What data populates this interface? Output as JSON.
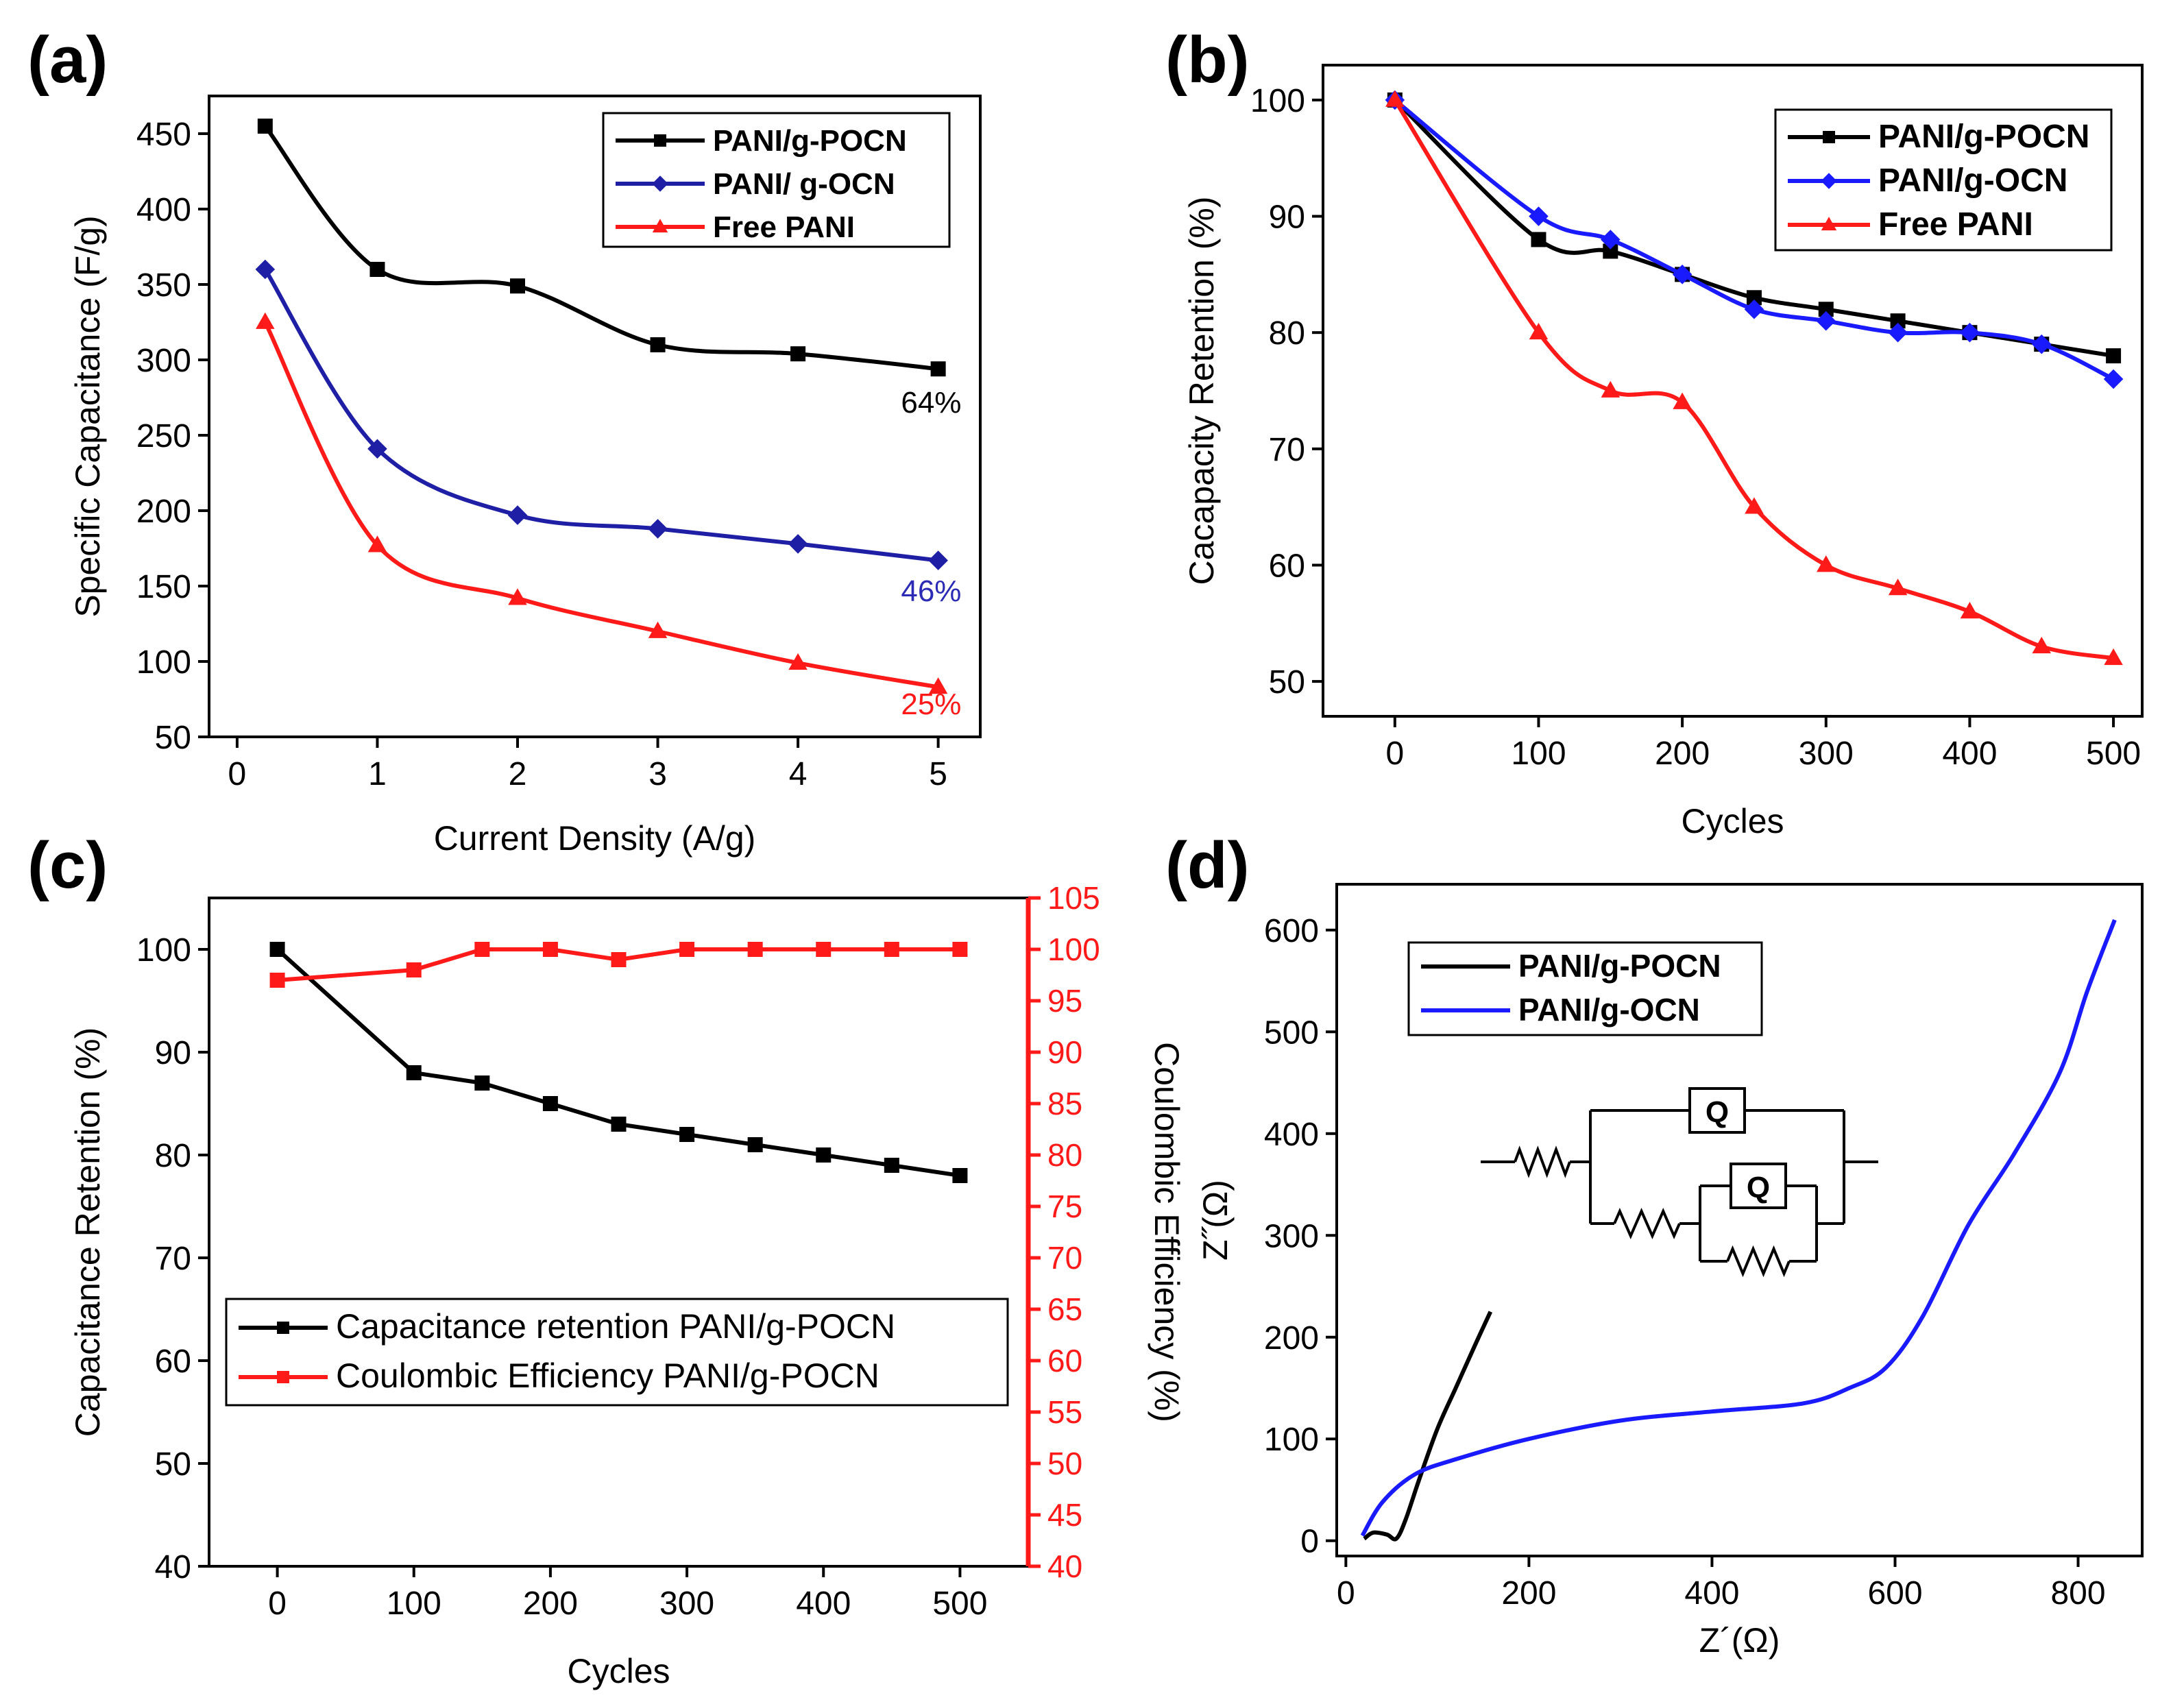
{
  "panels": {
    "a": "(a)",
    "b": "(b)",
    "c": "(c)",
    "d": "(d)"
  },
  "colors": {
    "black": "#000000",
    "navy": "#1f1fa6",
    "red": "#ff1a1a",
    "blue": "#1a1aff",
    "annotation_navy": "#2b2bb5"
  },
  "chart_data": [
    {
      "id": "a",
      "type": "line",
      "title": "",
      "xlabel": "Current Density (A/g)",
      "ylabel": "Specific Capacitance (F/g)",
      "xlim": [
        -0.2,
        5.3
      ],
      "ylim": [
        50,
        475
      ],
      "xticks": [
        0,
        1,
        2,
        3,
        4,
        5
      ],
      "yticks": [
        50,
        100,
        150,
        200,
        250,
        300,
        350,
        400,
        450
      ],
      "legend_position": "top-right",
      "series": [
        {
          "name": "PANI/g-POCN",
          "color": "#000000",
          "marker": "square",
          "x": [
            0.2,
            1,
            2,
            3,
            4,
            5
          ],
          "y": [
            455,
            360,
            349,
            310,
            304,
            294
          ]
        },
        {
          "name": "PANI/ g-OCN",
          "color": "#1f1fa6",
          "marker": "diamond",
          "x": [
            0.2,
            1,
            2,
            3,
            4,
            5
          ],
          "y": [
            360,
            241,
            197,
            188,
            178,
            167
          ]
        },
        {
          "name": "Free PANI",
          "color": "#ff1a1a",
          "marker": "triangle",
          "x": [
            0.2,
            1,
            2,
            3,
            4,
            5
          ],
          "y": [
            325,
            177,
            142,
            120,
            99,
            83
          ]
        }
      ],
      "annotations": [
        {
          "text": "64%",
          "color": "#000000",
          "x": 4.95,
          "y": 265
        },
        {
          "text": "46%",
          "color": "#2b2bb5",
          "x": 4.95,
          "y": 140
        },
        {
          "text": "25%",
          "color": "#ff1a1a",
          "x": 4.95,
          "y": 65
        }
      ]
    },
    {
      "id": "b",
      "type": "line",
      "title": "",
      "xlabel": "Cycles",
      "ylabel": "Cacapacity Retention (%)",
      "xlim": [
        -50,
        520
      ],
      "ylim": [
        47,
        103
      ],
      "xticks": [
        0,
        100,
        200,
        300,
        400,
        500
      ],
      "yticks": [
        50,
        60,
        70,
        80,
        90,
        100
      ],
      "legend_position": "top-right",
      "series": [
        {
          "name": "PANI/g-POCN",
          "color": "#000000",
          "marker": "square",
          "x": [
            0,
            100,
            150,
            200,
            250,
            300,
            350,
            400,
            450,
            500
          ],
          "y": [
            100,
            88,
            87,
            85,
            83,
            82,
            81,
            80,
            79,
            78
          ]
        },
        {
          "name": "PANI/g-OCN",
          "color": "#1a1aff",
          "marker": "diamond",
          "x": [
            0,
            100,
            150,
            200,
            250,
            300,
            350,
            400,
            450,
            500
          ],
          "y": [
            100,
            90,
            88,
            85,
            82,
            81,
            80,
            80,
            79,
            76
          ]
        },
        {
          "name": "Free PANI",
          "color": "#ff1a1a",
          "marker": "triangle",
          "x": [
            0,
            100,
            150,
            200,
            250,
            300,
            350,
            400,
            450,
            500
          ],
          "y": [
            100,
            80,
            75,
            74,
            65,
            60,
            58,
            56,
            53,
            52
          ]
        }
      ]
    },
    {
      "id": "c",
      "type": "line",
      "title": "",
      "xlabel": "Cycles",
      "ylabel": "Capacitance Retention (%)",
      "y2label": "Coulombic Efficiency (%)",
      "xlim": [
        -50,
        550
      ],
      "ylim": [
        40,
        105
      ],
      "y2lim": [
        40,
        105
      ],
      "xticks": [
        0,
        100,
        200,
        300,
        400,
        500
      ],
      "yticks": [
        40,
        50,
        60,
        70,
        80,
        90,
        100
      ],
      "y2ticks": [
        40,
        45,
        50,
        55,
        60,
        65,
        70,
        75,
        80,
        85,
        90,
        95,
        100,
        105
      ],
      "legend_position": "lower-left",
      "series": [
        {
          "name": "Capacitance retention PANI/g-POCN",
          "color": "#000000",
          "marker": "square",
          "axis": "left",
          "x": [
            0,
            100,
            150,
            200,
            250,
            300,
            350,
            400,
            450,
            500
          ],
          "y": [
            100,
            88,
            87,
            85,
            83,
            82,
            81,
            80,
            79,
            78
          ]
        },
        {
          "name": "Coulombic Efficiency PANI/g-POCN",
          "color": "#ff1a1a",
          "marker": "square",
          "axis": "right",
          "x": [
            0,
            100,
            150,
            200,
            250,
            300,
            350,
            400,
            450,
            500
          ],
          "y": [
            97,
            98,
            100,
            100,
            99,
            100,
            100,
            100,
            100,
            100
          ]
        }
      ]
    },
    {
      "id": "d",
      "type": "line",
      "title": "",
      "xlabel": "Z´(Ω)",
      "ylabel": "Z˝(Ω)",
      "xlim": [
        -10,
        870
      ],
      "ylim": [
        -15,
        645
      ],
      "xticks": [
        0,
        200,
        400,
        600,
        800
      ],
      "yticks": [
        0,
        100,
        200,
        300,
        400,
        500,
        600
      ],
      "legend_position": "top-left",
      "inset": "equivalent circuit: R + (Q ∥ (R + (Q ∥ R)))",
      "inset_labels": [
        "Q",
        "Q"
      ],
      "series": [
        {
          "name": "PANI/g-POCN",
          "color": "#000000",
          "marker": "none",
          "x": [
            20,
            30,
            45,
            55,
            65,
            80,
            100,
            120,
            140,
            158
          ],
          "y": [
            2,
            8,
            6,
            2,
            20,
            60,
            110,
            150,
            190,
            225
          ]
        },
        {
          "name": "PANI/g-OCN",
          "color": "#1a1aff",
          "marker": "none",
          "x": [
            18,
            40,
            75,
            120,
            200,
            300,
            400,
            500,
            550,
            590,
            630,
            680,
            730,
            780,
            810,
            840
          ],
          "y": [
            5,
            38,
            65,
            80,
            100,
            118,
            127,
            135,
            150,
            170,
            220,
            310,
            380,
            460,
            540,
            610
          ]
        }
      ]
    }
  ]
}
